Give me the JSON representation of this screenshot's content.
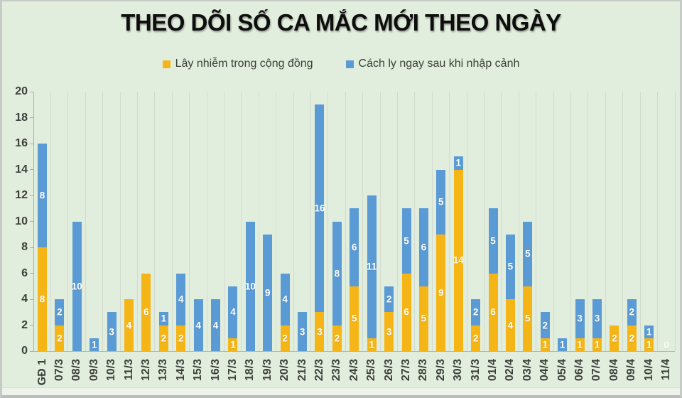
{
  "title": "THEO DÕI SỐ CA MẮC MỚI THEO NGÀY",
  "legend": [
    {
      "label": "Lây nhiễm trong cộng đồng",
      "color": "#F6B517"
    },
    {
      "label": "Cách ly ngay sau khi nhập cảnh",
      "color": "#5B9BD5"
    }
  ],
  "colors": {
    "background": "#E2EEDD",
    "gridline": "#D3DACF",
    "axis_line": "#A9AEA6",
    "axis_text": "#3B403B",
    "data_label_text": "#FFFFFF",
    "title_text": "#0E0E0E",
    "series_community": "#F6B517",
    "series_imported": "#5B9BD5"
  },
  "chart_data": {
    "type": "bar",
    "stacked": true,
    "title": "THEO DÕI SỐ CA MẮC MỚI THEO NGÀY",
    "categories": [
      "GĐ 1",
      "07/3",
      "08/3",
      "09/3",
      "10/3",
      "11/3",
      "12/3",
      "13/3",
      "14/3",
      "15/3",
      "16/3",
      "17/3",
      "18/3",
      "19/3",
      "20/3",
      "21/3",
      "22/3",
      "23/3",
      "24/3",
      "25/3",
      "26/3",
      "27/3",
      "28/3",
      "29/3",
      "30/3",
      "31/3",
      "01/4",
      "02/4",
      "03/4",
      "04/4",
      "05/4",
      "06/4",
      "07/4",
      "08/4",
      "09/4",
      "10/4",
      "11/4"
    ],
    "series": [
      {
        "name": "Lây nhiễm trong cộng đồng",
        "color": "#F6B517",
        "values": [
          8,
          2,
          0,
          0,
          0,
          4,
          6,
          2,
          2,
          0,
          0,
          1,
          0,
          0,
          2,
          0,
          3,
          2,
          5,
          1,
          3,
          6,
          5,
          9,
          14,
          2,
          6,
          4,
          5,
          1,
          0,
          1,
          1,
          2,
          2,
          1,
          0
        ]
      },
      {
        "name": "Cách ly ngay sau khi nhập cảnh",
        "color": "#5B9BD5",
        "values": [
          8,
          2,
          10,
          1,
          3,
          0,
          0,
          1,
          4,
          4,
          4,
          4,
          10,
          9,
          4,
          3,
          16,
          8,
          6,
          11,
          2,
          5,
          6,
          5,
          1,
          2,
          5,
          5,
          5,
          2,
          1,
          3,
          3,
          0,
          2,
          1,
          0
        ]
      }
    ],
    "totals": [
      16,
      4,
      10,
      1,
      3,
      4,
      6,
      3,
      6,
      4,
      4,
      5,
      10,
      9,
      6,
      3,
      19,
      10,
      11,
      12,
      5,
      11,
      11,
      14,
      15,
      4,
      11,
      9,
      10,
      3,
      1,
      4,
      4,
      2,
      4,
      2,
      0
    ],
    "xlabel": "",
    "ylabel": "",
    "ylim": [
      0,
      20
    ],
    "yticks": [
      0,
      2,
      4,
      6,
      8,
      10,
      12,
      14,
      16,
      18,
      20
    ],
    "grid": "vertical-category-gridlines",
    "legend_position": "top",
    "data_labels": "white, centered in each segment; zero-total day shows single 0",
    "zero_label": "0"
  }
}
